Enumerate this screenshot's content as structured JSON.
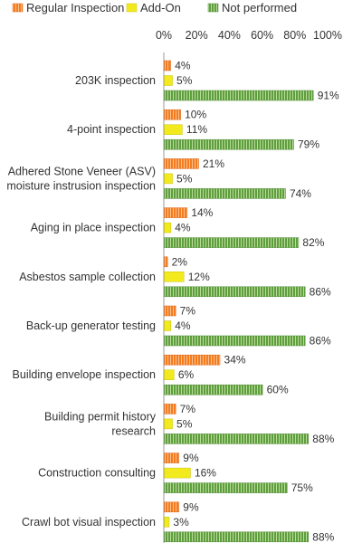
{
  "chart_data": {
    "type": "bar",
    "orientation": "horizontal",
    "title": "",
    "xlabel": "",
    "ylabel": "",
    "xlim": [
      0,
      100
    ],
    "x_ticks": [
      "0%",
      "20%",
      "40%",
      "60%",
      "80%",
      "100%"
    ],
    "value_suffix": "%",
    "legend_position": "top",
    "grid": false,
    "categories": [
      [
        "203K inspection"
      ],
      [
        "4-point inspection"
      ],
      [
        "Adhered Stone Veneer (ASV)",
        "moisture instrusion inspection"
      ],
      [
        "Aging in place inspection"
      ],
      [
        "Asbestos sample collection"
      ],
      [
        "Back-up generator testing"
      ],
      [
        "Building envelope inspection"
      ],
      [
        "Building permit history",
        "research"
      ],
      [
        "Construction consulting"
      ],
      [
        "Crawl bot visual inspection"
      ]
    ],
    "series": [
      {
        "name": "Regular Inspection",
        "color": "#f47c20",
        "values": [
          4,
          10,
          21,
          14,
          2,
          7,
          34,
          7,
          9,
          9
        ]
      },
      {
        "name": "Add-On",
        "color": "#f2ea1c",
        "values": [
          5,
          11,
          5,
          4,
          12,
          4,
          6,
          5,
          16,
          3
        ]
      },
      {
        "name": "Not performed",
        "color": "#6fb04e",
        "values": [
          91,
          79,
          74,
          82,
          86,
          86,
          60,
          88,
          75,
          88
        ]
      }
    ]
  }
}
